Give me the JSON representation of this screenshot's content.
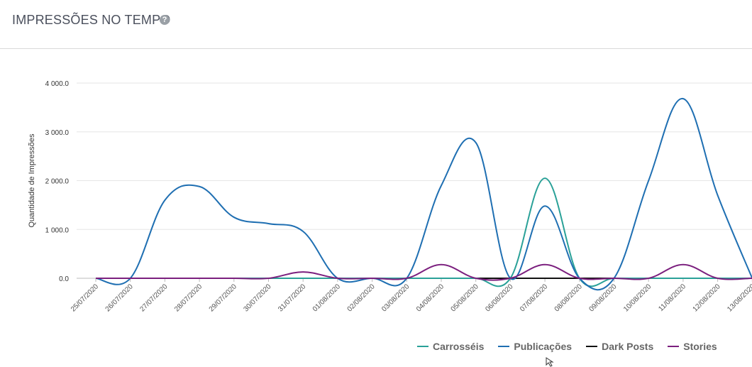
{
  "header": {
    "title": "IMPRESSÕES NO TEMPO",
    "help_icon": "question-circle-icon"
  },
  "chart_data": {
    "type": "line",
    "ylabel": "Quantidade de Impressões",
    "ylim": [
      0,
      4000
    ],
    "yticks": [
      "0.0",
      "1 000.0",
      "2 000.0",
      "3 000.0",
      "4 000.0"
    ],
    "yticks_values": [
      0,
      1000,
      2000,
      3000,
      4000
    ],
    "categories": [
      "25/07/2020",
      "26/07/2020",
      "27/07/2020",
      "28/07/2020",
      "29/07/2020",
      "30/07/2020",
      "31/07/2020",
      "01/08/2020",
      "02/08/2020",
      "03/08/2020",
      "04/08/2020",
      "05/08/2020",
      "06/08/2020",
      "07/08/2020",
      "08/08/2020",
      "09/08/2020",
      "10/08/2020",
      "11/08/2020",
      "12/08/2020",
      "13/08/2020"
    ],
    "legend_position": "bottom-right",
    "grid": true,
    "series": [
      {
        "name": "Carrosséis",
        "color": "#2aa198",
        "values": [
          0,
          0,
          0,
          0,
          0,
          0,
          0,
          0,
          0,
          0,
          0,
          0,
          0,
          2050,
          0,
          0,
          0,
          0,
          0,
          0
        ]
      },
      {
        "name": "Publicações",
        "color": "#1f6fb2",
        "values": [
          0,
          0,
          1600,
          1880,
          1250,
          1120,
          960,
          0,
          0,
          0,
          1900,
          2780,
          0,
          1480,
          0,
          0,
          2000,
          3680,
          1700,
          0
        ]
      },
      {
        "name": "Dark Posts",
        "color": "#111111",
        "values": [
          0,
          0,
          0,
          0,
          0,
          0,
          0,
          0,
          0,
          0,
          0,
          0,
          0,
          0,
          0,
          0,
          0,
          0,
          0,
          0
        ]
      },
      {
        "name": "Stories",
        "color": "#7b1f7e",
        "values": [
          0,
          0,
          0,
          0,
          0,
          0,
          130,
          0,
          0,
          0,
          280,
          0,
          0,
          280,
          0,
          0,
          0,
          280,
          0,
          0
        ]
      }
    ]
  }
}
